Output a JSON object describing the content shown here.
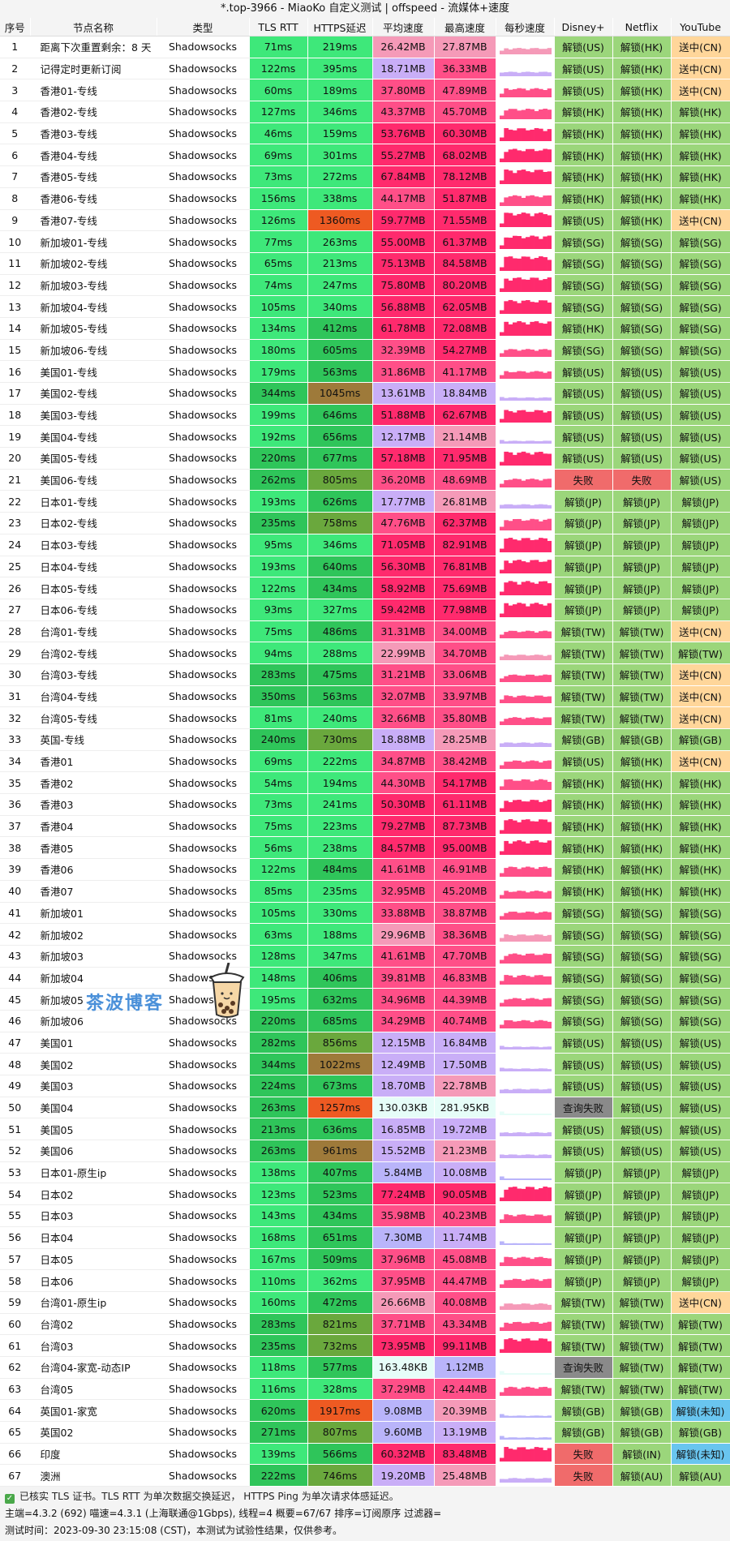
{
  "title": "*.top-3966 - MiaoKo 自定义测试 | offspeed - 流媒体+速度",
  "columns": [
    "序号",
    "节点名称",
    "类型",
    "TLS RTT",
    "HTTPS延迟",
    "平均速度",
    "最高速度",
    "每秒速度",
    "Disney+",
    "Netflix",
    "YouTube"
  ],
  "colors": {
    "rtt_good": "#3ee87a",
    "rtt_mid": "#2fc55a",
    "https_fast": "#3ee87a",
    "https_ok": "#2fc55a",
    "https_mid": "#6aa83d",
    "https_slow": "#9e7a3a",
    "https_very_slow": "#ee5a22",
    "speed_very_high": "#ff2a6d",
    "speed_high": "#ff4f88",
    "speed_mid": "#f59ab8",
    "speed_low": "#c9aef7",
    "speed_very_low": "#b9b4fa",
    "speed_kb": "#e6fdf8",
    "unlock": "#9bd67b",
    "fail": "#f06b6b",
    "query_fail": "#8a8a8a",
    "send_cn": "#ffd69a",
    "unlock_unknown": "#69c5ef"
  },
  "rows": [
    [
      "1",
      "距离下次重置剩余：8 天",
      "Shadowsocks",
      "71ms",
      "219ms",
      "26.42MB",
      "27.87MB",
      "解锁(US)",
      "解锁(HK)",
      "送中(CN)"
    ],
    [
      "2",
      "记得定时更新订阅",
      "Shadowsocks",
      "122ms",
      "395ms",
      "18.71MB",
      "36.33MB",
      "解锁(US)",
      "解锁(HK)",
      "送中(CN)"
    ],
    [
      "3",
      "香港01-专线",
      "Shadowsocks",
      "60ms",
      "189ms",
      "37.80MB",
      "47.89MB",
      "解锁(US)",
      "解锁(HK)",
      "送中(CN)"
    ],
    [
      "4",
      "香港02-专线",
      "Shadowsocks",
      "127ms",
      "346ms",
      "43.37MB",
      "45.70MB",
      "解锁(HK)",
      "解锁(HK)",
      "解锁(HK)"
    ],
    [
      "5",
      "香港03-专线",
      "Shadowsocks",
      "46ms",
      "159ms",
      "53.76MB",
      "60.30MB",
      "解锁(HK)",
      "解锁(HK)",
      "解锁(HK)"
    ],
    [
      "6",
      "香港04-专线",
      "Shadowsocks",
      "69ms",
      "301ms",
      "55.27MB",
      "68.02MB",
      "解锁(HK)",
      "解锁(HK)",
      "解锁(HK)"
    ],
    [
      "7",
      "香港05-专线",
      "Shadowsocks",
      "73ms",
      "272ms",
      "67.84MB",
      "78.12MB",
      "解锁(HK)",
      "解锁(HK)",
      "解锁(HK)"
    ],
    [
      "8",
      "香港06-专线",
      "Shadowsocks",
      "156ms",
      "338ms",
      "44.17MB",
      "51.87MB",
      "解锁(HK)",
      "解锁(HK)",
      "解锁(HK)"
    ],
    [
      "9",
      "香港07-专线",
      "Shadowsocks",
      "126ms",
      "1360ms",
      "59.77MB",
      "71.55MB",
      "解锁(US)",
      "解锁(HK)",
      "送中(CN)"
    ],
    [
      "10",
      "新加坡01-专线",
      "Shadowsocks",
      "77ms",
      "263ms",
      "55.00MB",
      "61.37MB",
      "解锁(SG)",
      "解锁(SG)",
      "解锁(SG)"
    ],
    [
      "11",
      "新加坡02-专线",
      "Shadowsocks",
      "65ms",
      "213ms",
      "75.13MB",
      "84.58MB",
      "解锁(SG)",
      "解锁(SG)",
      "解锁(SG)"
    ],
    [
      "12",
      "新加坡03-专线",
      "Shadowsocks",
      "74ms",
      "247ms",
      "75.80MB",
      "80.20MB",
      "解锁(SG)",
      "解锁(SG)",
      "解锁(SG)"
    ],
    [
      "13",
      "新加坡04-专线",
      "Shadowsocks",
      "105ms",
      "340ms",
      "56.88MB",
      "62.05MB",
      "解锁(SG)",
      "解锁(SG)",
      "解锁(SG)"
    ],
    [
      "14",
      "新加坡05-专线",
      "Shadowsocks",
      "134ms",
      "412ms",
      "61.78MB",
      "72.08MB",
      "解锁(HK)",
      "解锁(SG)",
      "解锁(SG)"
    ],
    [
      "15",
      "新加坡06-专线",
      "Shadowsocks",
      "180ms",
      "605ms",
      "32.39MB",
      "54.27MB",
      "解锁(SG)",
      "解锁(SG)",
      "解锁(SG)"
    ],
    [
      "16",
      "美国01-专线",
      "Shadowsocks",
      "179ms",
      "563ms",
      "31.86MB",
      "41.17MB",
      "解锁(US)",
      "解锁(US)",
      "解锁(US)"
    ],
    [
      "17",
      "美国02-专线",
      "Shadowsocks",
      "344ms",
      "1045ms",
      "13.61MB",
      "18.84MB",
      "解锁(US)",
      "解锁(US)",
      "解锁(US)"
    ],
    [
      "18",
      "美国03-专线",
      "Shadowsocks",
      "199ms",
      "646ms",
      "51.88MB",
      "62.67MB",
      "解锁(US)",
      "解锁(US)",
      "解锁(US)"
    ],
    [
      "19",
      "美国04-专线",
      "Shadowsocks",
      "192ms",
      "656ms",
      "12.17MB",
      "21.14MB",
      "解锁(US)",
      "解锁(US)",
      "解锁(US)"
    ],
    [
      "20",
      "美国05-专线",
      "Shadowsocks",
      "220ms",
      "677ms",
      "57.18MB",
      "71.95MB",
      "解锁(US)",
      "解锁(US)",
      "解锁(US)"
    ],
    [
      "21",
      "美国06-专线",
      "Shadowsocks",
      "262ms",
      "805ms",
      "36.20MB",
      "48.69MB",
      "失败",
      "失败",
      "解锁(US)"
    ],
    [
      "22",
      "日本01-专线",
      "Shadowsocks",
      "193ms",
      "626ms",
      "17.77MB",
      "26.81MB",
      "解锁(JP)",
      "解锁(JP)",
      "解锁(JP)"
    ],
    [
      "23",
      "日本02-专线",
      "Shadowsocks",
      "235ms",
      "758ms",
      "47.76MB",
      "62.37MB",
      "解锁(JP)",
      "解锁(JP)",
      "解锁(JP)"
    ],
    [
      "24",
      "日本03-专线",
      "Shadowsocks",
      "95ms",
      "346ms",
      "71.05MB",
      "82.91MB",
      "解锁(JP)",
      "解锁(JP)",
      "解锁(JP)"
    ],
    [
      "25",
      "日本04-专线",
      "Shadowsocks",
      "193ms",
      "640ms",
      "56.30MB",
      "76.81MB",
      "解锁(JP)",
      "解锁(JP)",
      "解锁(JP)"
    ],
    [
      "26",
      "日本05-专线",
      "Shadowsocks",
      "122ms",
      "434ms",
      "58.92MB",
      "75.69MB",
      "解锁(JP)",
      "解锁(JP)",
      "解锁(JP)"
    ],
    [
      "27",
      "日本06-专线",
      "Shadowsocks",
      "93ms",
      "327ms",
      "59.42MB",
      "77.98MB",
      "解锁(JP)",
      "解锁(JP)",
      "解锁(JP)"
    ],
    [
      "28",
      "台湾01-专线",
      "Shadowsocks",
      "75ms",
      "486ms",
      "31.31MB",
      "34.00MB",
      "解锁(TW)",
      "解锁(TW)",
      "送中(CN)"
    ],
    [
      "29",
      "台湾02-专线",
      "Shadowsocks",
      "94ms",
      "288ms",
      "22.99MB",
      "34.70MB",
      "解锁(TW)",
      "解锁(TW)",
      "解锁(TW)"
    ],
    [
      "30",
      "台湾03-专线",
      "Shadowsocks",
      "283ms",
      "475ms",
      "31.21MB",
      "33.06MB",
      "解锁(TW)",
      "解锁(TW)",
      "送中(CN)"
    ],
    [
      "31",
      "台湾04-专线",
      "Shadowsocks",
      "350ms",
      "563ms",
      "32.07MB",
      "33.97MB",
      "解锁(TW)",
      "解锁(TW)",
      "送中(CN)"
    ],
    [
      "32",
      "台湾05-专线",
      "Shadowsocks",
      "81ms",
      "240ms",
      "32.66MB",
      "35.80MB",
      "解锁(TW)",
      "解锁(TW)",
      "送中(CN)"
    ],
    [
      "33",
      "英国-专线",
      "Shadowsocks",
      "240ms",
      "730ms",
      "18.88MB",
      "28.25MB",
      "解锁(GB)",
      "解锁(GB)",
      "解锁(GB)"
    ],
    [
      "34",
      "香港01",
      "Shadowsocks",
      "69ms",
      "222ms",
      "34.87MB",
      "38.42MB",
      "解锁(US)",
      "解锁(HK)",
      "送中(CN)"
    ],
    [
      "35",
      "香港02",
      "Shadowsocks",
      "54ms",
      "194ms",
      "44.30MB",
      "54.17MB",
      "解锁(HK)",
      "解锁(HK)",
      "解锁(HK)"
    ],
    [
      "36",
      "香港03",
      "Shadowsocks",
      "73ms",
      "241ms",
      "50.30MB",
      "61.11MB",
      "解锁(HK)",
      "解锁(HK)",
      "解锁(HK)"
    ],
    [
      "37",
      "香港04",
      "Shadowsocks",
      "75ms",
      "223ms",
      "79.27MB",
      "87.73MB",
      "解锁(HK)",
      "解锁(HK)",
      "解锁(HK)"
    ],
    [
      "38",
      "香港05",
      "Shadowsocks",
      "56ms",
      "238ms",
      "84.57MB",
      "95.00MB",
      "解锁(HK)",
      "解锁(HK)",
      "解锁(HK)"
    ],
    [
      "39",
      "香港06",
      "Shadowsocks",
      "122ms",
      "484ms",
      "41.61MB",
      "46.91MB",
      "解锁(HK)",
      "解锁(HK)",
      "解锁(HK)"
    ],
    [
      "40",
      "香港07",
      "Shadowsocks",
      "85ms",
      "235ms",
      "32.95MB",
      "45.20MB",
      "解锁(HK)",
      "解锁(HK)",
      "解锁(HK)"
    ],
    [
      "41",
      "新加坡01",
      "Shadowsocks",
      "105ms",
      "330ms",
      "33.88MB",
      "38.87MB",
      "解锁(SG)",
      "解锁(SG)",
      "解锁(SG)"
    ],
    [
      "42",
      "新加坡02",
      "Shadowsocks",
      "63ms",
      "188ms",
      "29.96MB",
      "38.36MB",
      "解锁(SG)",
      "解锁(SG)",
      "解锁(SG)"
    ],
    [
      "43",
      "新加坡03",
      "Shadowsocks",
      "128ms",
      "347ms",
      "41.61MB",
      "47.70MB",
      "解锁(SG)",
      "解锁(SG)",
      "解锁(SG)"
    ],
    [
      "44",
      "新加坡04",
      "Shadowsocks",
      "148ms",
      "406ms",
      "39.81MB",
      "46.83MB",
      "解锁(SG)",
      "解锁(SG)",
      "解锁(SG)"
    ],
    [
      "45",
      "新加坡05",
      "Shadowsocks",
      "195ms",
      "632ms",
      "34.96MB",
      "44.39MB",
      "解锁(SG)",
      "解锁(SG)",
      "解锁(SG)"
    ],
    [
      "46",
      "新加坡06",
      "Shadowsocks",
      "220ms",
      "685ms",
      "34.29MB",
      "40.74MB",
      "解锁(SG)",
      "解锁(SG)",
      "解锁(SG)"
    ],
    [
      "47",
      "美国01",
      "Shadowsocks",
      "282ms",
      "856ms",
      "12.15MB",
      "16.84MB",
      "解锁(US)",
      "解锁(US)",
      "解锁(US)"
    ],
    [
      "48",
      "美国02",
      "Shadowsocks",
      "344ms",
      "1022ms",
      "12.49MB",
      "17.50MB",
      "解锁(US)",
      "解锁(US)",
      "解锁(US)"
    ],
    [
      "49",
      "美国03",
      "Shadowsocks",
      "224ms",
      "673ms",
      "18.70MB",
      "22.78MB",
      "解锁(US)",
      "解锁(US)",
      "解锁(US)"
    ],
    [
      "50",
      "美国04",
      "Shadowsocks",
      "263ms",
      "1257ms",
      "130.03KB",
      "281.95KB",
      "查询失败",
      "解锁(US)",
      "解锁(US)"
    ],
    [
      "51",
      "美国05",
      "Shadowsocks",
      "213ms",
      "636ms",
      "16.85MB",
      "19.72MB",
      "解锁(US)",
      "解锁(US)",
      "解锁(US)"
    ],
    [
      "52",
      "美国06",
      "Shadowsocks",
      "263ms",
      "961ms",
      "15.52MB",
      "21.23MB",
      "解锁(US)",
      "解锁(US)",
      "解锁(US)"
    ],
    [
      "53",
      "日本01-原生ip",
      "Shadowsocks",
      "138ms",
      "407ms",
      "5.84MB",
      "10.08MB",
      "解锁(JP)",
      "解锁(JP)",
      "解锁(JP)"
    ],
    [
      "54",
      "日本02",
      "Shadowsocks",
      "123ms",
      "523ms",
      "77.24MB",
      "90.05MB",
      "解锁(JP)",
      "解锁(JP)",
      "解锁(JP)"
    ],
    [
      "55",
      "日本03",
      "Shadowsocks",
      "143ms",
      "434ms",
      "35.98MB",
      "40.23MB",
      "解锁(JP)",
      "解锁(JP)",
      "解锁(JP)"
    ],
    [
      "56",
      "日本04",
      "Shadowsocks",
      "168ms",
      "651ms",
      "7.30MB",
      "11.74MB",
      "解锁(JP)",
      "解锁(JP)",
      "解锁(JP)"
    ],
    [
      "57",
      "日本05",
      "Shadowsocks",
      "167ms",
      "509ms",
      "37.96MB",
      "45.08MB",
      "解锁(JP)",
      "解锁(JP)",
      "解锁(JP)"
    ],
    [
      "58",
      "日本06",
      "Shadowsocks",
      "110ms",
      "362ms",
      "37.95MB",
      "44.47MB",
      "解锁(JP)",
      "解锁(JP)",
      "解锁(JP)"
    ],
    [
      "59",
      "台湾01-原生ip",
      "Shadowsocks",
      "160ms",
      "472ms",
      "26.66MB",
      "40.08MB",
      "解锁(TW)",
      "解锁(TW)",
      "送中(CN)"
    ],
    [
      "60",
      "台湾02",
      "Shadowsocks",
      "283ms",
      "821ms",
      "37.71MB",
      "43.34MB",
      "解锁(TW)",
      "解锁(TW)",
      "解锁(TW)"
    ],
    [
      "61",
      "台湾03",
      "Shadowsocks",
      "235ms",
      "732ms",
      "73.95MB",
      "99.11MB",
      "解锁(TW)",
      "解锁(TW)",
      "解锁(TW)"
    ],
    [
      "62",
      "台湾04-家宽-动态IP",
      "Shadowsocks",
      "118ms",
      "577ms",
      "163.48KB",
      "1.12MB",
      "查询失败",
      "解锁(TW)",
      "解锁(TW)"
    ],
    [
      "63",
      "台湾05",
      "Shadowsocks",
      "116ms",
      "328ms",
      "37.29MB",
      "42.44MB",
      "解锁(TW)",
      "解锁(TW)",
      "解锁(TW)"
    ],
    [
      "64",
      "英国01-家宽",
      "Shadowsocks",
      "620ms",
      "1917ms",
      "9.08MB",
      "20.39MB",
      "解锁(GB)",
      "解锁(GB)",
      "解锁(未知)"
    ],
    [
      "65",
      "英国02",
      "Shadowsocks",
      "271ms",
      "807ms",
      "9.60MB",
      "13.19MB",
      "解锁(GB)",
      "解锁(GB)",
      "解锁(GB)"
    ],
    [
      "66",
      "印度",
      "Shadowsocks",
      "139ms",
      "566ms",
      "60.32MB",
      "83.48MB",
      "失败",
      "解锁(IN)",
      "解锁(未知)"
    ],
    [
      "67",
      "澳洲",
      "Shadowsocks",
      "222ms",
      "746ms",
      "19.20MB",
      "25.48MB",
      "失败",
      "解锁(AU)",
      "解锁(AU)"
    ]
  ],
  "footer": {
    "check_icon": "check-icon",
    "line1": "已核实 TLS 证书。TLS RTT 为单次数据交换延迟， HTTPS Ping 为单次请求体感延迟。",
    "line2": "主端=4.3.2 (692) 喵速=4.3.1 (上海联通@1Gbps), 线程=4 概要=67/67 排序=订阅原序 过滤器=",
    "line3": "测试时间：2023-09-30 23:15:08 (CST)，本测试为试验性结果，仅供参考。"
  },
  "watermark": {
    "text": "茶波博客",
    "icon": "bubble-tea-icon"
  }
}
